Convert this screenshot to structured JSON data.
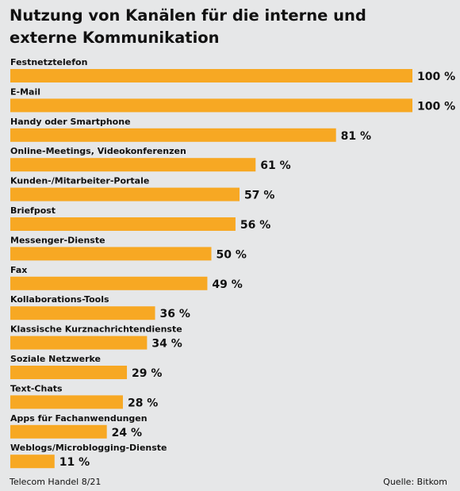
{
  "chart_data": {
    "type": "bar",
    "orientation": "horizontal",
    "title": "Nutzung von Kanälen für die interne und externe Kommunikation",
    "categories": [
      "Festnetztelefon",
      "E-Mail",
      "Handy oder Smartphone",
      "Online-Meetings, Videokonferenzen",
      "Kunden-/Mitarbeiter-Portale",
      "Briefpost",
      "Messenger-Dienste",
      "Fax",
      "Kollaborations-Tools",
      "Klassische Kurznachrichtendienste",
      "Soziale Netzwerke",
      "Text-Chats",
      "Apps für Fachanwendungen",
      "Weblogs/Microblogging-Dienste"
    ],
    "values": [
      100,
      100,
      81,
      61,
      57,
      56,
      50,
      49,
      36,
      34,
      29,
      28,
      24,
      11
    ],
    "value_labels": [
      "100 %",
      "100 %",
      "81 %",
      "61 %",
      "57 %",
      "56 %",
      "50 %",
      "49 %",
      "36 %",
      "34 %",
      "29 %",
      "28 %",
      "24 %",
      "11 %"
    ],
    "xlim": [
      0,
      100
    ],
    "grid": false,
    "bar_color": "#f7a823"
  },
  "footer": {
    "source_left": "Telecom Handel 8/21",
    "source_right": "Quelle: Bitkom"
  }
}
